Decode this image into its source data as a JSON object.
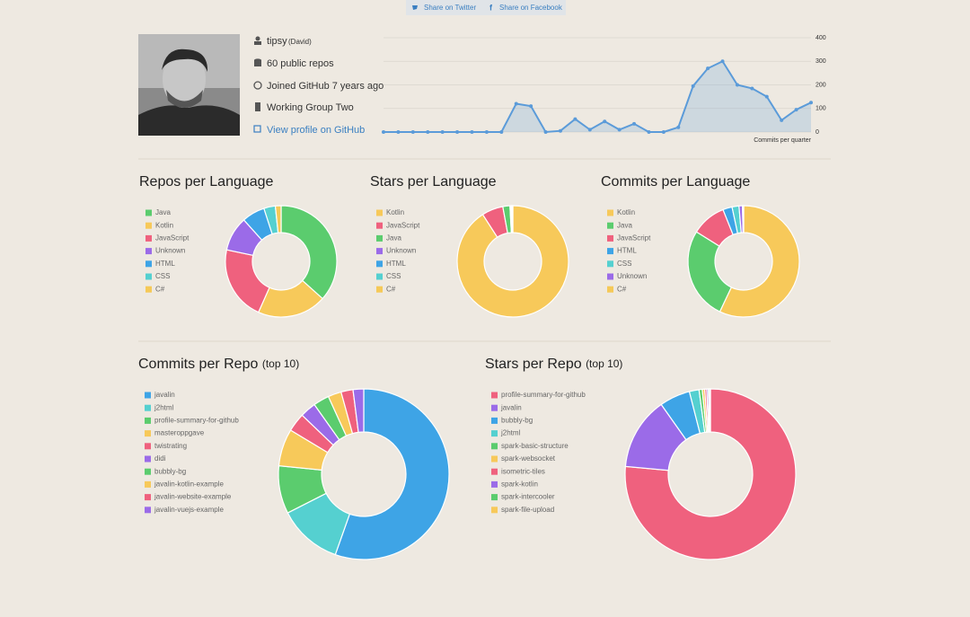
{
  "share": {
    "twitter": "Share on Twitter",
    "facebook": "Share on Facebook"
  },
  "profile": {
    "username": "tipsy",
    "name": "(David)",
    "repos": "60 public repos",
    "joined": "Joined GitHub 7 years ago",
    "company": "Working Group Two",
    "link": "View profile on GitHub"
  },
  "chart_data": [
    {
      "type": "line",
      "xlabel": "Commits per quarter",
      "categories": [
        null,
        null,
        null,
        null,
        null,
        null,
        null,
        null,
        null,
        null,
        null,
        null,
        null,
        null,
        null,
        null,
        null,
        null,
        null,
        null,
        null,
        null,
        null,
        null,
        null,
        null,
        null,
        null,
        null,
        null
      ],
      "values": [
        0,
        0,
        0,
        0,
        0,
        0,
        0,
        0,
        0,
        120,
        110,
        0,
        5,
        55,
        10,
        45,
        10,
        35,
        0,
        0,
        20,
        195,
        270,
        300,
        200,
        185,
        150,
        50,
        95,
        125
      ],
      "color": "#5b9bd9",
      "ylim": [
        0,
        400
      ],
      "yticks": [
        0,
        100,
        200,
        300,
        400
      ],
      "grid": true
    },
    {
      "type": "doughnut",
      "title": "Repos per Language",
      "categories": [
        "Java",
        "Kotlin",
        "JavaScript",
        "Unknown",
        "HTML",
        "CSS",
        "C#"
      ],
      "values": [
        22,
        12,
        13,
        6,
        4,
        2,
        1
      ],
      "colors": [
        "#5bcc6e",
        "#f7c95a",
        "#ef617e",
        "#9b6be8",
        "#3ea4e6",
        "#55d0d0",
        "#f5c958"
      ]
    },
    {
      "type": "doughnut",
      "title": "Stars per Language",
      "categories": [
        "Kotlin",
        "JavaScript",
        "Java",
        "Unknown",
        "HTML",
        "CSS",
        "C#"
      ],
      "values": [
        880,
        60,
        20,
        3,
        2,
        2,
        1
      ],
      "colors": [
        "#f7c95a",
        "#ef617e",
        "#5bcc6e",
        "#9b6be8",
        "#3ea4e6",
        "#55d0d0",
        "#f5c958"
      ]
    },
    {
      "type": "doughnut",
      "title": "Commits per Language",
      "categories": [
        "Kotlin",
        "Java",
        "JavaScript",
        "HTML",
        "CSS",
        "Unknown",
        "C#"
      ],
      "values": [
        1700,
        800,
        300,
        80,
        60,
        30,
        10
      ],
      "colors": [
        "#f7c95a",
        "#5bcc6e",
        "#ef617e",
        "#3ea4e6",
        "#55d0d0",
        "#9b6be8",
        "#f5c958"
      ]
    },
    {
      "type": "doughnut",
      "title": "Commits per Repo",
      "subtitle": "(top 10)",
      "categories": [
        "javalin",
        "j2html",
        "profile-summary-for-github",
        "masteroppgave",
        "twistrating",
        "didi",
        "bubbly-bg",
        "javalin-kotlin-example",
        "javalin-website-example",
        "javalin-vuejs-example"
      ],
      "values": [
        1100,
        240,
        180,
        140,
        70,
        60,
        60,
        50,
        45,
        40
      ],
      "colors": [
        "#3ea4e6",
        "#55d0d0",
        "#5bcc6e",
        "#f7c95a",
        "#ef617e",
        "#9b6be8",
        "#5bcc6e",
        "#f7c95a",
        "#ef617e",
        "#9b6be8"
      ]
    },
    {
      "type": "doughnut",
      "title": "Stars per Repo",
      "subtitle": "(top 10)",
      "categories": [
        "profile-summary-for-github",
        "javalin",
        "bubbly-bg",
        "j2html",
        "spark-basic-structure",
        "spark-websocket",
        "isometric-tiles",
        "spark-kotlin",
        "spark-intercooler",
        "spark-file-upload"
      ],
      "values": [
        5000,
        900,
        380,
        120,
        40,
        30,
        25,
        20,
        15,
        10
      ],
      "colors": [
        "#ef617e",
        "#9b6be8",
        "#3ea4e6",
        "#55d0d0",
        "#5bcc6e",
        "#f7c95a",
        "#ef617e",
        "#9b6be8",
        "#5bcc6e",
        "#f7c95a"
      ]
    }
  ]
}
